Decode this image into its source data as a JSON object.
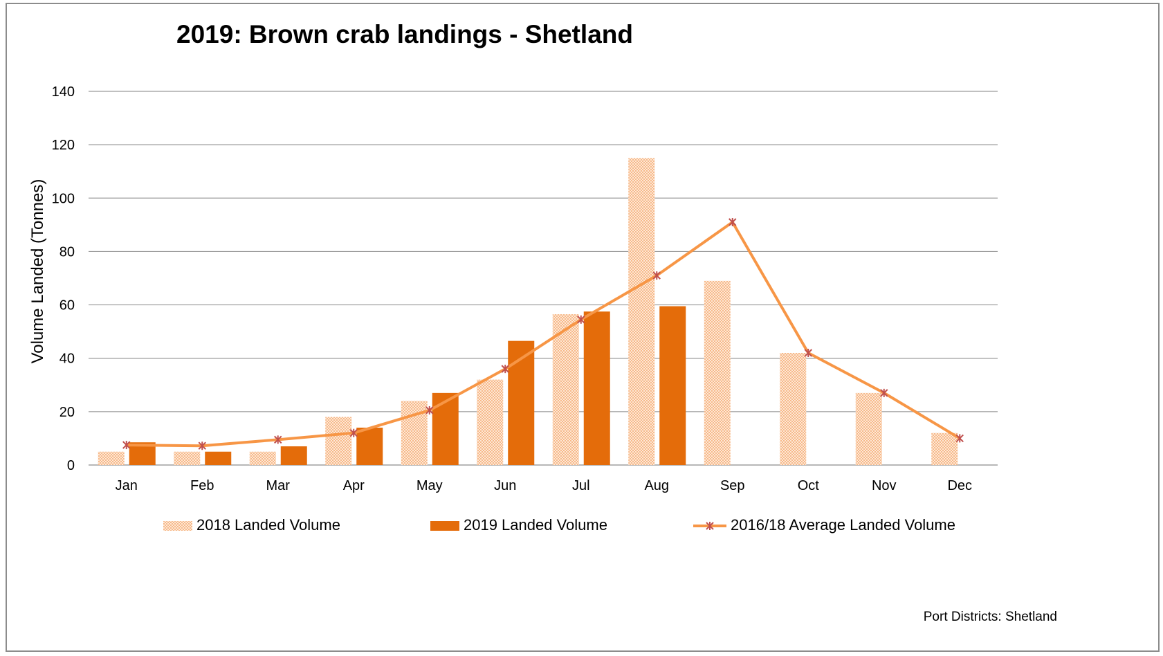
{
  "chart_data": {
    "type": "bar",
    "title": "2019: Brown crab landings - Shetland",
    "xlabel": "",
    "ylabel": "Volume Landed (Tonnes)",
    "ylim": [
      0,
      140
    ],
    "yticks": [
      0,
      20,
      40,
      60,
      80,
      100,
      120,
      140
    ],
    "categories": [
      "Jan",
      "Feb",
      "Mar",
      "Apr",
      "May",
      "Jun",
      "Jul",
      "Aug",
      "Sep",
      "Oct",
      "Nov",
      "Dec"
    ],
    "series": [
      {
        "name": "2018  Landed Volume",
        "type": "bar",
        "pattern": "checkered",
        "color": "#f9cba4",
        "values": [
          5,
          5,
          5,
          18,
          24,
          32,
          56.5,
          115,
          69,
          42,
          27,
          12
        ]
      },
      {
        "name": "2019 Landed Volume",
        "type": "bar",
        "color": "#e46c0a",
        "values": [
          8.5,
          5,
          7,
          14,
          27,
          46.5,
          57.5,
          59.5,
          null,
          null,
          null,
          null
        ]
      },
      {
        "name": "2016/18 Average Landed Volume",
        "type": "line",
        "marker": "star",
        "color": "#f79646",
        "marker_color": "#c0504d",
        "values": [
          7.5,
          7.2,
          9.5,
          12,
          20.5,
          36,
          54.5,
          71,
          91,
          42,
          27,
          10
        ]
      }
    ],
    "grid": true,
    "legend_position": "bottom",
    "footnote": "Port Districts:  Shetland"
  }
}
